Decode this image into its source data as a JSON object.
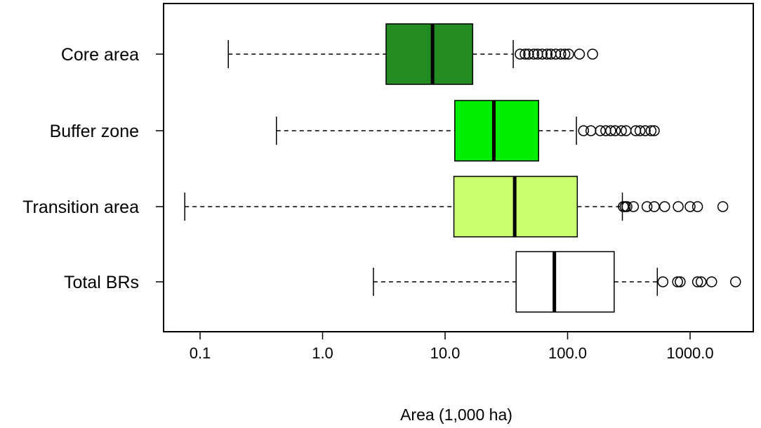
{
  "chart_data": {
    "type": "boxplot",
    "orientation": "horizontal",
    "xlabel": "Area (1,000 ha)",
    "ylabel": "",
    "xscale": "log",
    "xlim": [
      0.05,
      3000
    ],
    "xticks": [
      0.1,
      1,
      10,
      100,
      1000
    ],
    "xtick_labels": [
      "0.1",
      "1.0",
      "10.0",
      "100.0",
      "1000.0"
    ],
    "grid": false,
    "series": [
      {
        "name": "Core area",
        "color": "#228B22",
        "whisker_low": 0.17,
        "q1": 3.3,
        "median": 7.9,
        "q3": 16.8,
        "whisker_high": 36,
        "outliers": [
          41,
          45,
          48,
          53,
          57,
          62,
          68,
          73,
          80,
          88,
          95,
          102,
          125,
          160
        ]
      },
      {
        "name": "Buffer zone",
        "color": "#00EE00",
        "whisker_low": 0.42,
        "q1": 12,
        "median": 25,
        "q3": 58,
        "whisker_high": 118,
        "outliers": [
          135,
          155,
          185,
          205,
          225,
          245,
          275,
          300,
          360,
          390,
          430,
          480,
          510
        ]
      },
      {
        "name": "Transition area",
        "color": "#CAFF70",
        "whisker_low": 0.075,
        "q1": 11.8,
        "median": 37,
        "q3": 120,
        "whisker_high": 280,
        "outliers": [
          285,
          295,
          305,
          345,
          445,
          510,
          620,
          800,
          1000,
          1150,
          1850
        ]
      },
      {
        "name": "Total BRs",
        "color": "#FFFFFF",
        "whisker_low": 2.6,
        "q1": 38,
        "median": 78,
        "q3": 240,
        "whisker_high": 540,
        "outliers": [
          600,
          790,
          830,
          1150,
          1230,
          1500,
          2350
        ]
      }
    ]
  }
}
